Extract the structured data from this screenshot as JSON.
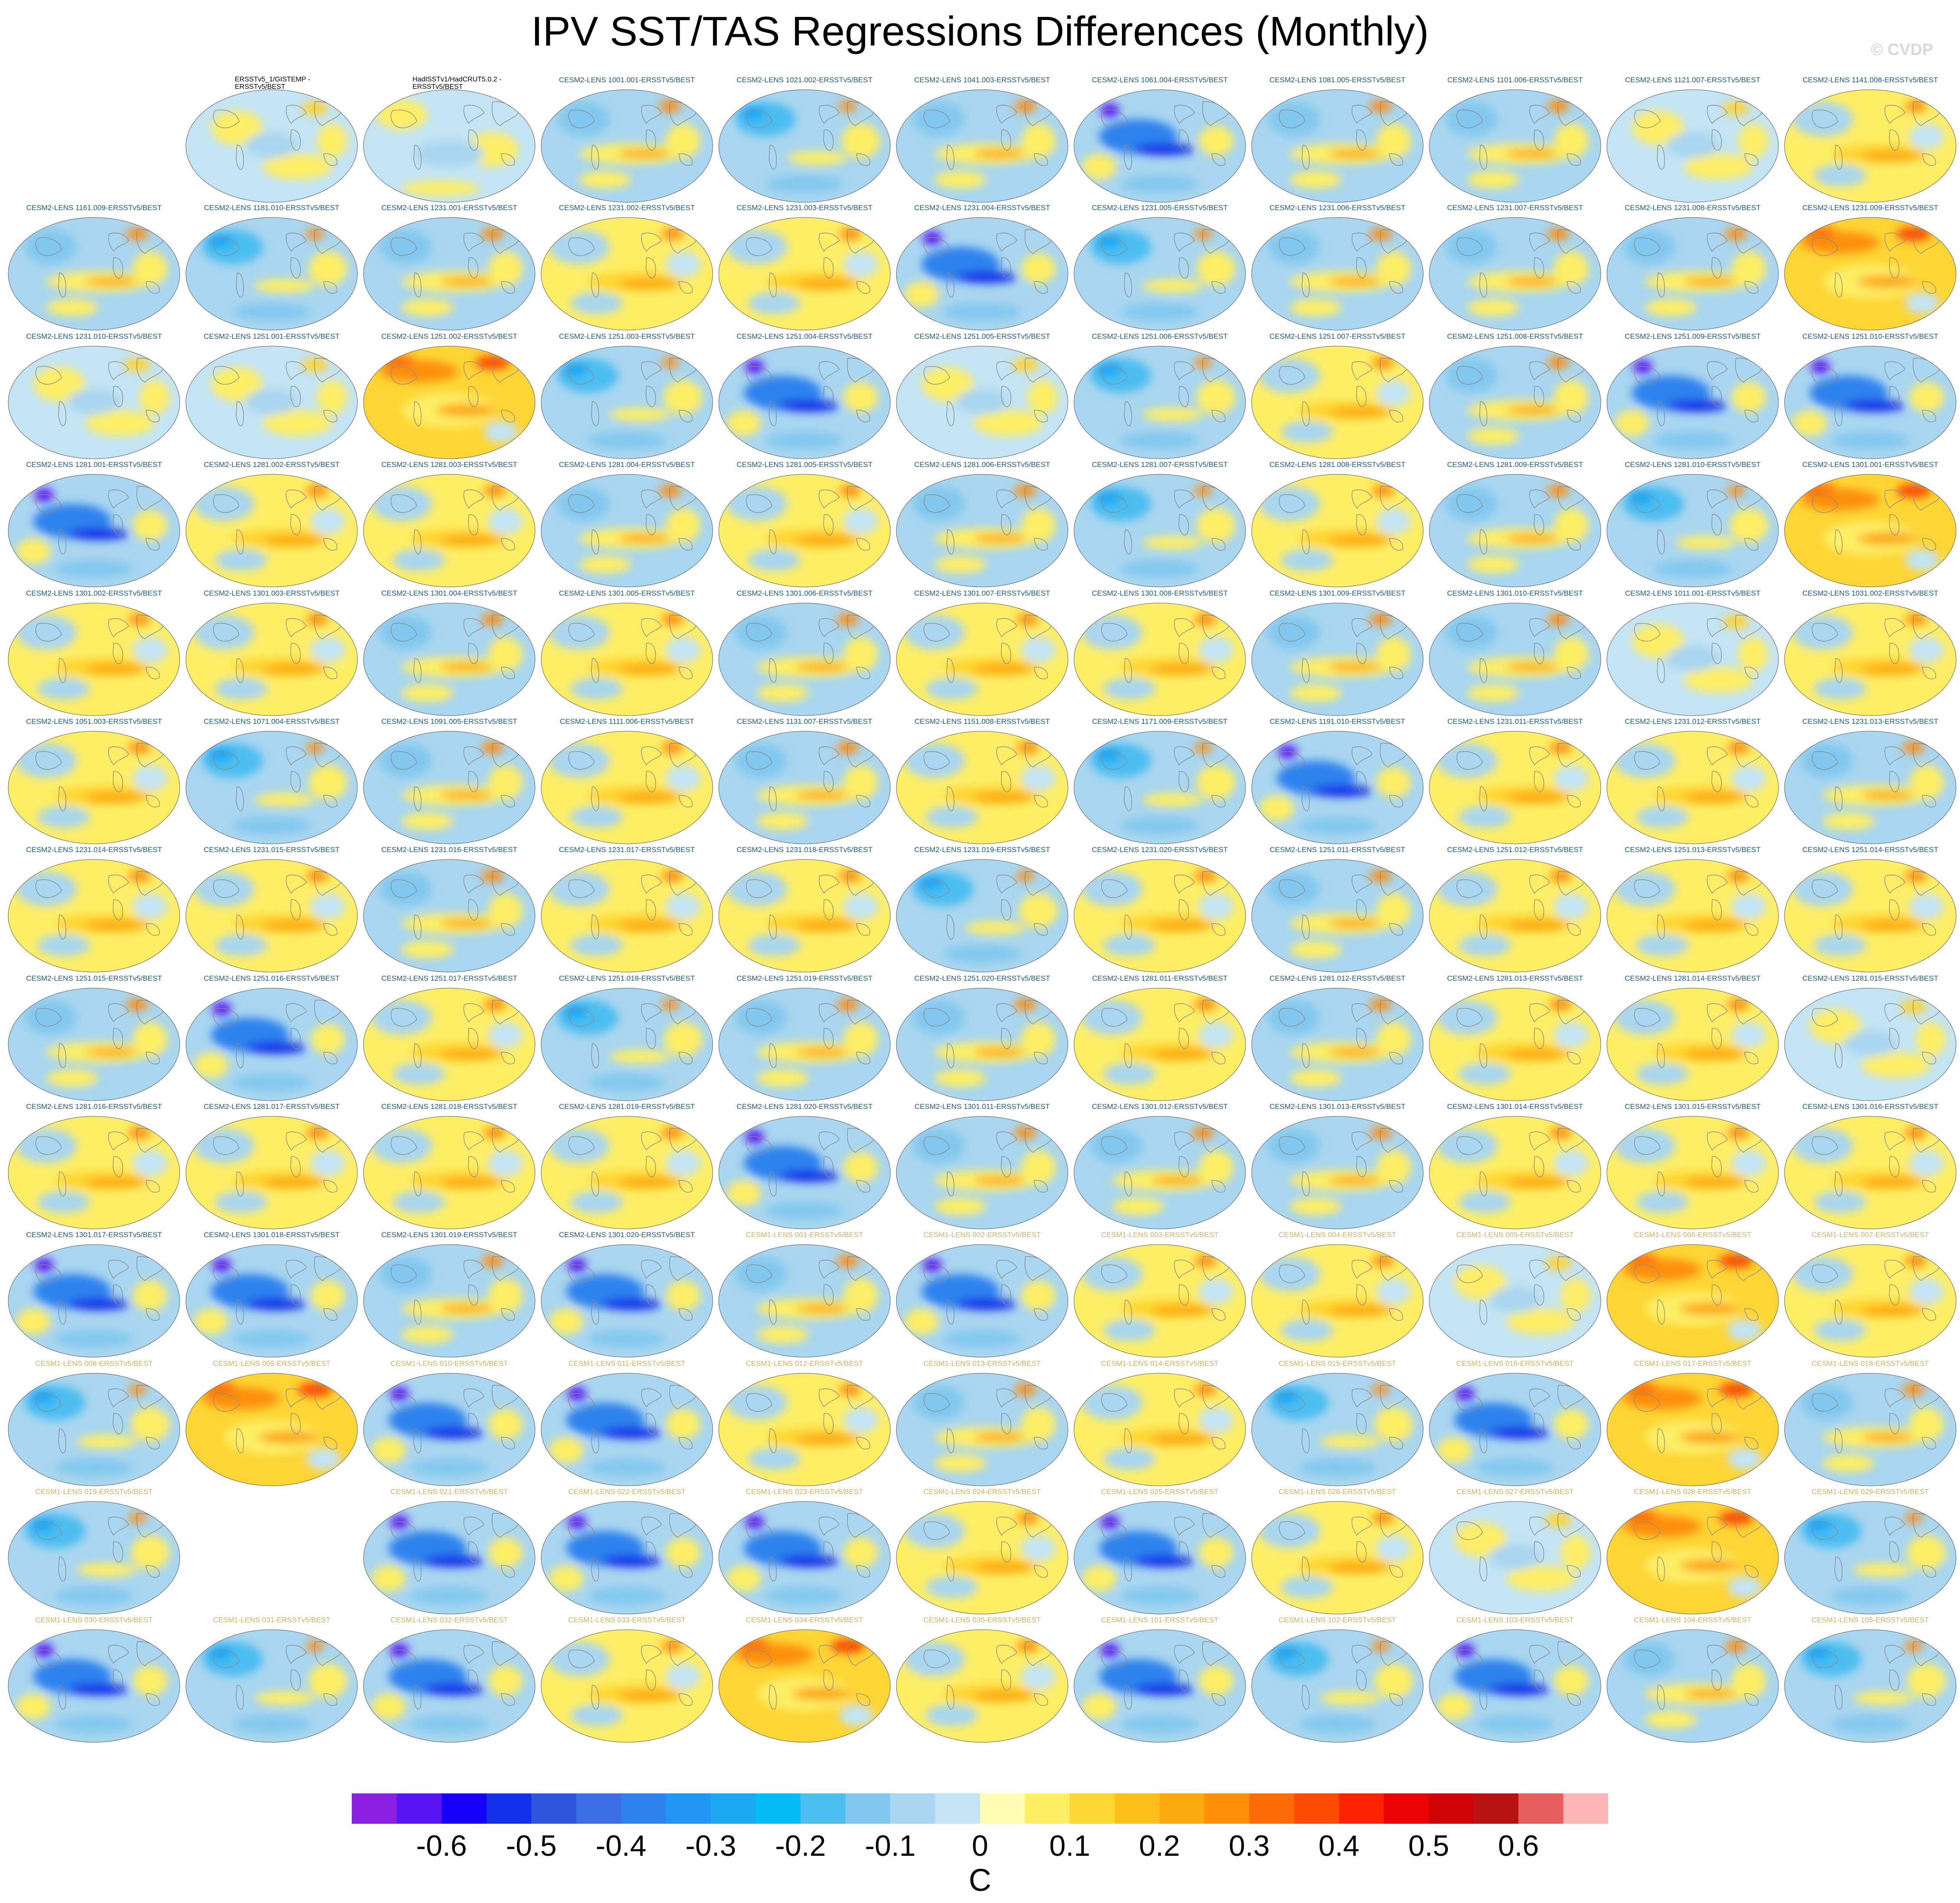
{
  "title": "IPV SST/TAS Regressions Differences (Monthly)",
  "watermark": "© CVDP",
  "units": "C",
  "colorbar": {
    "ticks": [
      "-0.6",
      "-0.5",
      "-0.4",
      "-0.3",
      "-0.2",
      "-0.1",
      "0",
      "0.1",
      "0.2",
      "0.3",
      "0.4",
      "0.5",
      "0.6"
    ],
    "colors": [
      "#8a1fe0",
      "#5a16f2",
      "#1800f8",
      "#1530e9",
      "#2f55dc",
      "#3c6ee6",
      "#2d82ee",
      "#2196f3",
      "#1ba8f4",
      "#06bcf7",
      "#4cbef0",
      "#82c8ee",
      "#a9d6f0",
      "#c3e4f4",
      "#fffcb5",
      "#fdee66",
      "#fed533",
      "#fdbf1c",
      "#fda90f",
      "#fd8f09",
      "#fd6d07",
      "#fd4b04",
      "#fd2300",
      "#e90303",
      "#cf0404",
      "#b81212",
      "#e85e5e",
      "#fdb5b5"
    ]
  },
  "label_colors": {
    "obs": "#000000",
    "cesm2": "#1a5a8c",
    "cesm1": "#d4b062"
  },
  "panels": [
    {
      "r": 0,
      "c": 1,
      "label": "ERSSTv5_1/GISTEMP - ERSSTv5/BEST",
      "g": "obs",
      "pat": 4
    },
    {
      "r": 0,
      "c": 2,
      "label": "HadISSTv1/HadCRUT5.0.2 - ERSSTv5/BEST",
      "g": "obs",
      "pat": 5
    },
    {
      "r": 0,
      "c": 3,
      "label": "CESM2-LENS 1001.001-ERSSTv5/BEST",
      "g": "cesm2",
      "pat": 1
    },
    {
      "r": 0,
      "c": 4,
      "label": "CESM2-LENS 1021.002-ERSSTv5/BEST",
      "g": "cesm2",
      "pat": 2
    },
    {
      "r": 0,
      "c": 5,
      "label": "CESM2-LENS 1041.003-ERSSTv5/BEST",
      "g": "cesm2",
      "pat": 1
    },
    {
      "r": 0,
      "c": 6,
      "label": "CESM2-LENS 1061.004-ERSSTv5/BEST",
      "g": "cesm2",
      "pat": 3
    },
    {
      "r": 0,
      "c": 7,
      "label": "CESM2-LENS 1081.005-ERSSTv5/BEST",
      "g": "cesm2",
      "pat": 1
    },
    {
      "r": 0,
      "c": 8,
      "label": "CESM2-LENS 1101.006-ERSSTv5/BEST",
      "g": "cesm2",
      "pat": 1
    },
    {
      "r": 0,
      "c": 9,
      "label": "CESM2-LENS 1121.007-ERSSTv5/BEST",
      "g": "cesm2",
      "pat": 4
    },
    {
      "r": 0,
      "c": 10,
      "label": "CESM2-LENS 1141.008-ERSSTv5/BEST",
      "g": "cesm2",
      "pat": 0
    },
    {
      "r": 1,
      "c": 0,
      "label": "CESM2-LENS 1161.009-ERSSTv5/BEST",
      "g": "cesm2",
      "pat": 1
    },
    {
      "r": 1,
      "c": 1,
      "label": "CESM2-LENS 1181.010-ERSSTv5/BEST",
      "g": "cesm2",
      "pat": 2
    },
    {
      "r": 1,
      "c": 2,
      "label": "CESM2-LENS 1231.001-ERSSTv5/BEST",
      "g": "cesm2",
      "pat": 1
    },
    {
      "r": 1,
      "c": 3,
      "label": "CESM2-LENS 1231.002-ERSSTv5/BEST",
      "g": "cesm2",
      "pat": 0
    },
    {
      "r": 1,
      "c": 4,
      "label": "CESM2-LENS 1231.003-ERSSTv5/BEST",
      "g": "cesm2",
      "pat": 0
    },
    {
      "r": 1,
      "c": 5,
      "label": "CESM2-LENS 1231.004-ERSSTv5/BEST",
      "g": "cesm2",
      "pat": 3
    },
    {
      "r": 1,
      "c": 6,
      "label": "CESM2-LENS 1231.005-ERSSTv5/BEST",
      "g": "cesm2",
      "pat": 2
    },
    {
      "r": 1,
      "c": 7,
      "label": "CESM2-LENS 1231.006-ERSSTv5/BEST",
      "g": "cesm2",
      "pat": 1
    },
    {
      "r": 1,
      "c": 8,
      "label": "CESM2-LENS 1231.007-ERSSTv5/BEST",
      "g": "cesm2",
      "pat": 1
    },
    {
      "r": 1,
      "c": 9,
      "label": "CESM2-LENS 1231.008-ERSSTv5/BEST",
      "g": "cesm2",
      "pat": 1
    },
    {
      "r": 1,
      "c": 10,
      "label": "CESM2-LENS 1231.009-ERSSTv5/BEST",
      "g": "cesm2",
      "pat": 6
    },
    {
      "r": 2,
      "c": 0,
      "label": "CESM2-LENS 1231.010-ERSSTv5/BEST",
      "g": "cesm2",
      "pat": 4
    },
    {
      "r": 2,
      "c": 1,
      "label": "CESM2-LENS 1251.001-ERSSTv5/BEST",
      "g": "cesm2",
      "pat": 4
    },
    {
      "r": 2,
      "c": 2,
      "label": "CESM2-LENS 1251.002-ERSSTv5/BEST",
      "g": "cesm2",
      "pat": 6
    },
    {
      "r": 2,
      "c": 3,
      "label": "CESM2-LENS 1251.003-ERSSTv5/BEST",
      "g": "cesm2",
      "pat": 2
    },
    {
      "r": 2,
      "c": 4,
      "label": "CESM2-LENS 1251.004-ERSSTv5/BEST",
      "g": "cesm2",
      "pat": 3
    },
    {
      "r": 2,
      "c": 5,
      "label": "CESM2-LENS 1251.005-ERSSTv5/BEST",
      "g": "cesm2",
      "pat": 4
    },
    {
      "r": 2,
      "c": 6,
      "label": "CESM2-LENS 1251.006-ERSSTv5/BEST",
      "g": "cesm2",
      "pat": 2
    },
    {
      "r": 2,
      "c": 7,
      "label": "CESM2-LENS 1251.007-ERSSTv5/BEST",
      "g": "cesm2",
      "pat": 0
    },
    {
      "r": 2,
      "c": 8,
      "label": "CESM2-LENS 1251.008-ERSSTv5/BEST",
      "g": "cesm2",
      "pat": 1
    },
    {
      "r": 2,
      "c": 9,
      "label": "CESM2-LENS 1251.009-ERSSTv5/BEST",
      "g": "cesm2",
      "pat": 3
    },
    {
      "r": 2,
      "c": 10,
      "label": "CESM2-LENS 1251.010-ERSSTv5/BEST",
      "g": "cesm2",
      "pat": 3
    },
    {
      "r": 3,
      "c": 0,
      "label": "CESM2-LENS 1281.001-ERSSTv5/BEST",
      "g": "cesm2",
      "pat": 3
    },
    {
      "r": 3,
      "c": 1,
      "label": "CESM2-LENS 1281.002-ERSSTv5/BEST",
      "g": "cesm2",
      "pat": 0
    },
    {
      "r": 3,
      "c": 2,
      "label": "CESM2-LENS 1281.003-ERSSTv5/BEST",
      "g": "cesm2",
      "pat": 0
    },
    {
      "r": 3,
      "c": 3,
      "label": "CESM2-LENS 1281.004-ERSSTv5/BEST",
      "g": "cesm2",
      "pat": 1
    },
    {
      "r": 3,
      "c": 4,
      "label": "CESM2-LENS 1281.005-ERSSTv5/BEST",
      "g": "cesm2",
      "pat": 0
    },
    {
      "r": 3,
      "c": 5,
      "label": "CESM2-LENS 1281.006-ERSSTv5/BEST",
      "g": "cesm2",
      "pat": 1
    },
    {
      "r": 3,
      "c": 6,
      "label": "CESM2-LENS 1281.007-ERSSTv5/BEST",
      "g": "cesm2",
      "pat": 2
    },
    {
      "r": 3,
      "c": 7,
      "label": "CESM2-LENS 1281.008-ERSSTv5/BEST",
      "g": "cesm2",
      "pat": 0
    },
    {
      "r": 3,
      "c": 8,
      "label": "CESM2-LENS 1281.009-ERSSTv5/BEST",
      "g": "cesm2",
      "pat": 1
    },
    {
      "r": 3,
      "c": 9,
      "label": "CESM2-LENS 1281.010-ERSSTv5/BEST",
      "g": "cesm2",
      "pat": 2
    },
    {
      "r": 3,
      "c": 10,
      "label": "CESM2-LENS 1301.001-ERSSTv5/BEST",
      "g": "cesm2",
      "pat": 6
    },
    {
      "r": 4,
      "c": 0,
      "label": "CESM2-LENS 1301.002-ERSSTv5/BEST",
      "g": "cesm2",
      "pat": 0
    },
    {
      "r": 4,
      "c": 1,
      "label": "CESM2-LENS 1301.003-ERSSTv5/BEST",
      "g": "cesm2",
      "pat": 0
    },
    {
      "r": 4,
      "c": 2,
      "label": "CESM2-LENS 1301.004-ERSSTv5/BEST",
      "g": "cesm2",
      "pat": 1
    },
    {
      "r": 4,
      "c": 3,
      "label": "CESM2-LENS 1301.005-ERSSTv5/BEST",
      "g": "cesm2",
      "pat": 0
    },
    {
      "r": 4,
      "c": 4,
      "label": "CESM2-LENS 1301.006-ERSSTv5/BEST",
      "g": "cesm2",
      "pat": 1
    },
    {
      "r": 4,
      "c": 5,
      "label": "CESM2-LENS 1301.007-ERSSTv5/BEST",
      "g": "cesm2",
      "pat": 0
    },
    {
      "r": 4,
      "c": 6,
      "label": "CESM2-LENS 1301.008-ERSSTv5/BEST",
      "g": "cesm2",
      "pat": 0
    },
    {
      "r": 4,
      "c": 7,
      "label": "CESM2-LENS 1301.009-ERSSTv5/BEST",
      "g": "cesm2",
      "pat": 1
    },
    {
      "r": 4,
      "c": 8,
      "label": "CESM2-LENS 1301.010-ERSSTv5/BEST",
      "g": "cesm2",
      "pat": 1
    },
    {
      "r": 4,
      "c": 9,
      "label": "CESM2-LENS 1011.001-ERSSTv5/BEST",
      "g": "cesm2",
      "pat": 4
    },
    {
      "r": 4,
      "c": 10,
      "label": "CESM2-LENS 1031.002-ERSSTv5/BEST",
      "g": "cesm2",
      "pat": 0
    },
    {
      "r": 5,
      "c": 0,
      "label": "CESM2-LENS 1051.003-ERSSTv5/BEST",
      "g": "cesm2",
      "pat": 0
    },
    {
      "r": 5,
      "c": 1,
      "label": "CESM2-LENS 1071.004-ERSSTv5/BEST",
      "g": "cesm2",
      "pat": 2
    },
    {
      "r": 5,
      "c": 2,
      "label": "CESM2-LENS 1091.005-ERSSTv5/BEST",
      "g": "cesm2",
      "pat": 1
    },
    {
      "r": 5,
      "c": 3,
      "label": "CESM2-LENS 1111.006-ERSSTv5/BEST",
      "g": "cesm2",
      "pat": 0
    },
    {
      "r": 5,
      "c": 4,
      "label": "CESM2-LENS 1131.007-ERSSTv5/BEST",
      "g": "cesm2",
      "pat": 1
    },
    {
      "r": 5,
      "c": 5,
      "label": "CESM2-LENS 1151.008-ERSSTv5/BEST",
      "g": "cesm2",
      "pat": 0
    },
    {
      "r": 5,
      "c": 6,
      "label": "CESM2-LENS 1171.009-ERSSTv5/BEST",
      "g": "cesm2",
      "pat": 2
    },
    {
      "r": 5,
      "c": 7,
      "label": "CESM2-LENS 1191.010-ERSSTv5/BEST",
      "g": "cesm2",
      "pat": 3
    },
    {
      "r": 5,
      "c": 8,
      "label": "CESM2-LENS 1231.011-ERSSTv5/BEST",
      "g": "cesm2",
      "pat": 0
    },
    {
      "r": 5,
      "c": 9,
      "label": "CESM2-LENS 1231.012-ERSSTv5/BEST",
      "g": "cesm2",
      "pat": 0
    },
    {
      "r": 5,
      "c": 10,
      "label": "CESM2-LENS 1231.013-ERSSTv5/BEST",
      "g": "cesm2",
      "pat": 1
    },
    {
      "r": 6,
      "c": 0,
      "label": "CESM2-LENS 1231.014-ERSSTv5/BEST",
      "g": "cesm2",
      "pat": 0
    },
    {
      "r": 6,
      "c": 1,
      "label": "CESM2-LENS 1231.015-ERSSTv5/BEST",
      "g": "cesm2",
      "pat": 0
    },
    {
      "r": 6,
      "c": 2,
      "label": "CESM2-LENS 1231.016-ERSSTv5/BEST",
      "g": "cesm2",
      "pat": 1
    },
    {
      "r": 6,
      "c": 3,
      "label": "CESM2-LENS 1231.017-ERSSTv5/BEST",
      "g": "cesm2",
      "pat": 0
    },
    {
      "r": 6,
      "c": 4,
      "label": "CESM2-LENS 1231.018-ERSSTv5/BEST",
      "g": "cesm2",
      "pat": 0
    },
    {
      "r": 6,
      "c": 5,
      "label": "CESM2-LENS 1231.019-ERSSTv5/BEST",
      "g": "cesm2",
      "pat": 2
    },
    {
      "r": 6,
      "c": 6,
      "label": "CESM2-LENS 1231.020-ERSSTv5/BEST",
      "g": "cesm2",
      "pat": 0
    },
    {
      "r": 6,
      "c": 7,
      "label": "CESM2-LENS 1251.011-ERSSTv5/BEST",
      "g": "cesm2",
      "pat": 1
    },
    {
      "r": 6,
      "c": 8,
      "label": "CESM2-LENS 1251.012-ERSSTv5/BEST",
      "g": "cesm2",
      "pat": 0
    },
    {
      "r": 6,
      "c": 9,
      "label": "CESM2-LENS 1251.013-ERSSTv5/BEST",
      "g": "cesm2",
      "pat": 0
    },
    {
      "r": 6,
      "c": 10,
      "label": "CESM2-LENS 1251.014-ERSSTv5/BEST",
      "g": "cesm2",
      "pat": 0
    },
    {
      "r": 7,
      "c": 0,
      "label": "CESM2-LENS 1251.015-ERSSTv5/BEST",
      "g": "cesm2",
      "pat": 1
    },
    {
      "r": 7,
      "c": 1,
      "label": "CESM2-LENS 1251.016-ERSSTv5/BEST",
      "g": "cesm2",
      "pat": 3
    },
    {
      "r": 7,
      "c": 2,
      "label": "CESM2-LENS 1251.017-ERSSTv5/BEST",
      "g": "cesm2",
      "pat": 0
    },
    {
      "r": 7,
      "c": 3,
      "label": "CESM2-LENS 1251.018-ERSSTv5/BEST",
      "g": "cesm2",
      "pat": 2
    },
    {
      "r": 7,
      "c": 4,
      "label": "CESM2-LENS 1251.019-ERSSTv5/BEST",
      "g": "cesm2",
      "pat": 1
    },
    {
      "r": 7,
      "c": 5,
      "label": "CESM2-LENS 1251.020-ERSSTv5/BEST",
      "g": "cesm2",
      "pat": 1
    },
    {
      "r": 7,
      "c": 6,
      "label": "CESM2-LENS 1281.011-ERSSTv5/BEST",
      "g": "cesm2",
      "pat": 0
    },
    {
      "r": 7,
      "c": 7,
      "label": "CESM2-LENS 1281.012-ERSSTv5/BEST",
      "g": "cesm2",
      "pat": 1
    },
    {
      "r": 7,
      "c": 8,
      "label": "CESM2-LENS 1281.013-ERSSTv5/BEST",
      "g": "cesm2",
      "pat": 0
    },
    {
      "r": 7,
      "c": 9,
      "label": "CESM2-LENS 1281.014-ERSSTv5/BEST",
      "g": "cesm2",
      "pat": 0
    },
    {
      "r": 7,
      "c": 10,
      "label": "CESM2-LENS 1281.015-ERSSTv5/BEST",
      "g": "cesm2",
      "pat": 4
    },
    {
      "r": 8,
      "c": 0,
      "label": "CESM2-LENS 1281.016-ERSSTv5/BEST",
      "g": "cesm2",
      "pat": 0
    },
    {
      "r": 8,
      "c": 1,
      "label": "CESM2-LENS 1281.017-ERSSTv5/BEST",
      "g": "cesm2",
      "pat": 0
    },
    {
      "r": 8,
      "c": 2,
      "label": "CESM2-LENS 1281.018-ERSSTv5/BEST",
      "g": "cesm2",
      "pat": 0
    },
    {
      "r": 8,
      "c": 3,
      "label": "CESM2-LENS 1281.019-ERSSTv5/BEST",
      "g": "cesm2",
      "pat": 0
    },
    {
      "r": 8,
      "c": 4,
      "label": "CESM2-LENS 1281.020-ERSSTv5/BEST",
      "g": "cesm2",
      "pat": 3
    },
    {
      "r": 8,
      "c": 5,
      "label": "CESM2-LENS 1301.011-ERSSTv5/BEST",
      "g": "cesm2",
      "pat": 1
    },
    {
      "r": 8,
      "c": 6,
      "label": "CESM2-LENS 1301.012-ERSSTv5/BEST",
      "g": "cesm2",
      "pat": 1
    },
    {
      "r": 8,
      "c": 7,
      "label": "CESM2-LENS 1301.013-ERSSTv5/BEST",
      "g": "cesm2",
      "pat": 1
    },
    {
      "r": 8,
      "c": 8,
      "label": "CESM2-LENS 1301.014-ERSSTv5/BEST",
      "g": "cesm2",
      "pat": 0
    },
    {
      "r": 8,
      "c": 9,
      "label": "CESM2-LENS 1301.015-ERSSTv5/BEST",
      "g": "cesm2",
      "pat": 0
    },
    {
      "r": 8,
      "c": 10,
      "label": "CESM2-LENS 1301.016-ERSSTv5/BEST",
      "g": "cesm2",
      "pat": 0
    },
    {
      "r": 9,
      "c": 0,
      "label": "CESM2-LENS 1301.017-ERSSTv5/BEST",
      "g": "cesm2",
      "pat": 3
    },
    {
      "r": 9,
      "c": 1,
      "label": "CESM2-LENS 1301.018-ERSSTv5/BEST",
      "g": "cesm2",
      "pat": 3
    },
    {
      "r": 9,
      "c": 2,
      "label": "CESM2-LENS 1301.019-ERSSTv5/BEST",
      "g": "cesm2",
      "pat": 1
    },
    {
      "r": 9,
      "c": 3,
      "label": "CESM2-LENS 1301.020-ERSSTv5/BEST",
      "g": "cesm2",
      "pat": 3
    },
    {
      "r": 9,
      "c": 4,
      "label": "CESM1-LENS 001-ERSSTv5/BEST",
      "g": "cesm1",
      "pat": 1
    },
    {
      "r": 9,
      "c": 5,
      "label": "CESM1-LENS 002-ERSSTv5/BEST",
      "g": "cesm1",
      "pat": 3
    },
    {
      "r": 9,
      "c": 6,
      "label": "CESM1-LENS 003-ERSSTv5/BEST",
      "g": "cesm1",
      "pat": 0
    },
    {
      "r": 9,
      "c": 7,
      "label": "CESM1-LENS 004-ERSSTv5/BEST",
      "g": "cesm1",
      "pat": 0
    },
    {
      "r": 9,
      "c": 8,
      "label": "CESM1-LENS 005-ERSSTv5/BEST",
      "g": "cesm1",
      "pat": 4
    },
    {
      "r": 9,
      "c": 9,
      "label": "CESM1-LENS 006-ERSSTv5/BEST",
      "g": "cesm1",
      "pat": 6
    },
    {
      "r": 9,
      "c": 10,
      "label": "CESM1-LENS 007-ERSSTv5/BEST",
      "g": "cesm1",
      "pat": 0
    },
    {
      "r": 10,
      "c": 0,
      "label": "CESM1-LENS 008-ERSSTv5/BEST",
      "g": "cesm1",
      "pat": 2
    },
    {
      "r": 10,
      "c": 1,
      "label": "CESM1-LENS 009-ERSSTv5/BEST",
      "g": "cesm1",
      "pat": 6
    },
    {
      "r": 10,
      "c": 2,
      "label": "CESM1-LENS 010-ERSSTv5/BEST",
      "g": "cesm1",
      "pat": 3
    },
    {
      "r": 10,
      "c": 3,
      "label": "CESM1-LENS 011-ERSSTv5/BEST",
      "g": "cesm1",
      "pat": 3
    },
    {
      "r": 10,
      "c": 4,
      "label": "CESM1-LENS 012-ERSSTv5/BEST",
      "g": "cesm1",
      "pat": 0
    },
    {
      "r": 10,
      "c": 5,
      "label": "CESM1-LENS 013-ERSSTv5/BEST",
      "g": "cesm1",
      "pat": 1
    },
    {
      "r": 10,
      "c": 6,
      "label": "CESM1-LENS 014-ERSSTv5/BEST",
      "g": "cesm1",
      "pat": 0
    },
    {
      "r": 10,
      "c": 7,
      "label": "CESM1-LENS 015-ERSSTv5/BEST",
      "g": "cesm1",
      "pat": 2
    },
    {
      "r": 10,
      "c": 8,
      "label": "CESM1-LENS 016-ERSSTv5/BEST",
      "g": "cesm1",
      "pat": 3
    },
    {
      "r": 10,
      "c": 9,
      "label": "CESM1-LENS 017-ERSSTv5/BEST",
      "g": "cesm1",
      "pat": 6
    },
    {
      "r": 10,
      "c": 10,
      "label": "CESM1-LENS 018-ERSSTv5/BEST",
      "g": "cesm1",
      "pat": 1
    },
    {
      "r": 11,
      "c": 0,
      "label": "CESM1-LENS 019-ERSSTv5/BEST",
      "g": "cesm1",
      "pat": 2
    },
    {
      "r": 11,
      "c": 2,
      "label": "CESM1-LENS 021-ERSSTv5/BEST",
      "g": "cesm1",
      "pat": 3
    },
    {
      "r": 11,
      "c": 3,
      "label": "CESM1-LENS 022-ERSSTv5/BEST",
      "g": "cesm1",
      "pat": 3
    },
    {
      "r": 11,
      "c": 4,
      "label": "CESM1-LENS 023-ERSSTv5/BEST",
      "g": "cesm1",
      "pat": 3
    },
    {
      "r": 11,
      "c": 5,
      "label": "CESM1-LENS 024-ERSSTv5/BEST",
      "g": "cesm1",
      "pat": 0
    },
    {
      "r": 11,
      "c": 6,
      "label": "CESM1-LENS 025-ERSSTv5/BEST",
      "g": "cesm1",
      "pat": 3
    },
    {
      "r": 11,
      "c": 7,
      "label": "CESM1-LENS 026-ERSSTv5/BEST",
      "g": "cesm1",
      "pat": 0
    },
    {
      "r": 11,
      "c": 8,
      "label": "CESM1-LENS 027-ERSSTv5/BEST",
      "g": "cesm1",
      "pat": 4
    },
    {
      "r": 11,
      "c": 9,
      "label": "CESM1-LENS 028-ERSSTv5/BEST",
      "g": "cesm1",
      "pat": 6
    },
    {
      "r": 11,
      "c": 10,
      "label": "CESM1-LENS 029-ERSSTv5/BEST",
      "g": "cesm1",
      "pat": 2
    },
    {
      "r": 12,
      "c": 0,
      "label": "CESM1-LENS 030-ERSSTv5/BEST",
      "g": "cesm1",
      "pat": 3
    },
    {
      "r": 12,
      "c": 1,
      "label": "CESM1-LENS 031-ERSSTv5/BEST",
      "g": "cesm1",
      "pat": 2
    },
    {
      "r": 12,
      "c": 2,
      "label": "CESM1-LENS 032-ERSSTv5/BEST",
      "g": "cesm1",
      "pat": 3
    },
    {
      "r": 12,
      "c": 3,
      "label": "CESM1-LENS 033-ERSSTv5/BEST",
      "g": "cesm1",
      "pat": 0
    },
    {
      "r": 12,
      "c": 4,
      "label": "CESM1-LENS 034-ERSSTv5/BEST",
      "g": "cesm1",
      "pat": 6
    },
    {
      "r": 12,
      "c": 5,
      "label": "CESM1-LENS 035-ERSSTv5/BEST",
      "g": "cesm1",
      "pat": 0
    },
    {
      "r": 12,
      "c": 6,
      "label": "CESM1-LENS 101-ERSSTv5/BEST",
      "g": "cesm1",
      "pat": 3
    },
    {
      "r": 12,
      "c": 7,
      "label": "CESM1-LENS 102-ERSSTv5/BEST",
      "g": "cesm1",
      "pat": 2
    },
    {
      "r": 12,
      "c": 8,
      "label": "CESM1-LENS 103-ERSSTv5/BEST",
      "g": "cesm1",
      "pat": 3
    },
    {
      "r": 12,
      "c": 9,
      "label": "CESM1-LENS 104-ERSSTv5/BEST",
      "g": "cesm1",
      "pat": 1
    },
    {
      "r": 12,
      "c": 10,
      "label": "CESM1-LENS 105-ERSSTv5/BEST",
      "g": "cesm1",
      "pat": 2
    }
  ]
}
